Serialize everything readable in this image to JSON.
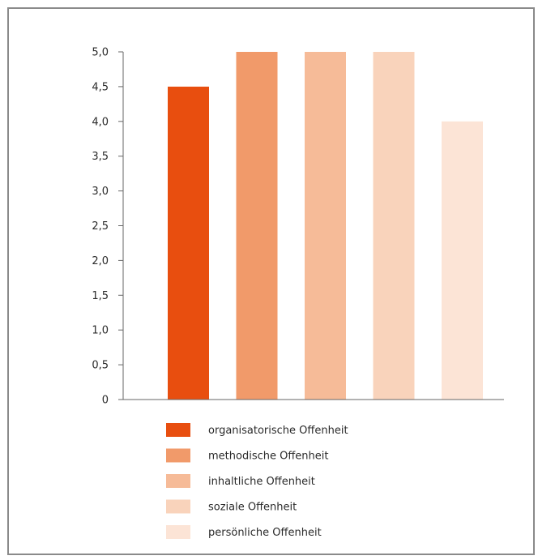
{
  "chart_data": {
    "type": "bar",
    "categories": [
      "organisatorische Offenheit",
      "methodische Offenheit",
      "inhaltliche Offenheit",
      "soziale Offenheit",
      "persönliche Offenheit"
    ],
    "values": [
      4.5,
      5.0,
      5.0,
      5.0,
      4.0
    ],
    "colors": [
      "#e84e0f",
      "#f19a6a",
      "#f6bb98",
      "#f9d3bb",
      "#fce4d6"
    ],
    "ylim": [
      0,
      5
    ],
    "yticks": [
      "0",
      "0,5",
      "1,0",
      "1,5",
      "2,0",
      "2,5",
      "3,0",
      "3,5",
      "4,0",
      "4,5",
      "5,0"
    ],
    "grid": false,
    "legend_position": "bottom",
    "title": "",
    "xlabel": "",
    "ylabel": ""
  }
}
